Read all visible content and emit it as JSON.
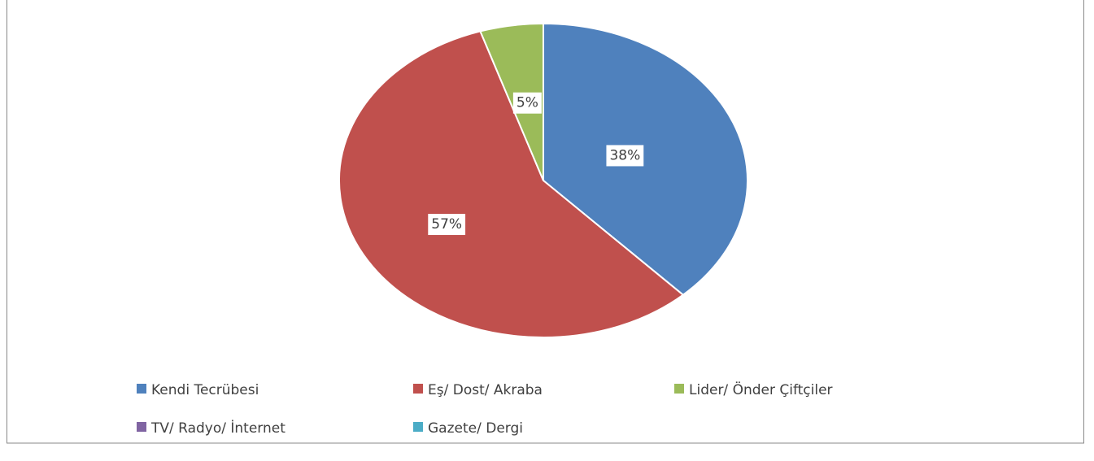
{
  "chart_data": {
    "type": "pie",
    "categories": [
      "Kendi Tecrübesi",
      "Eş/ Dost/ Akraba",
      "Lider/ Önder Çiftçiler",
      "TV/ Radyo/ İnternet",
      "Gazete/ Dergi"
    ],
    "values": [
      38,
      57,
      5,
      0,
      0
    ],
    "value_labels": [
      "38%",
      "57%",
      "5%",
      null,
      null
    ],
    "colors": [
      "#4f81bd",
      "#c0504d",
      "#9bbb59",
      "#8064a2",
      "#4bacc6"
    ],
    "legend": "bottom"
  }
}
